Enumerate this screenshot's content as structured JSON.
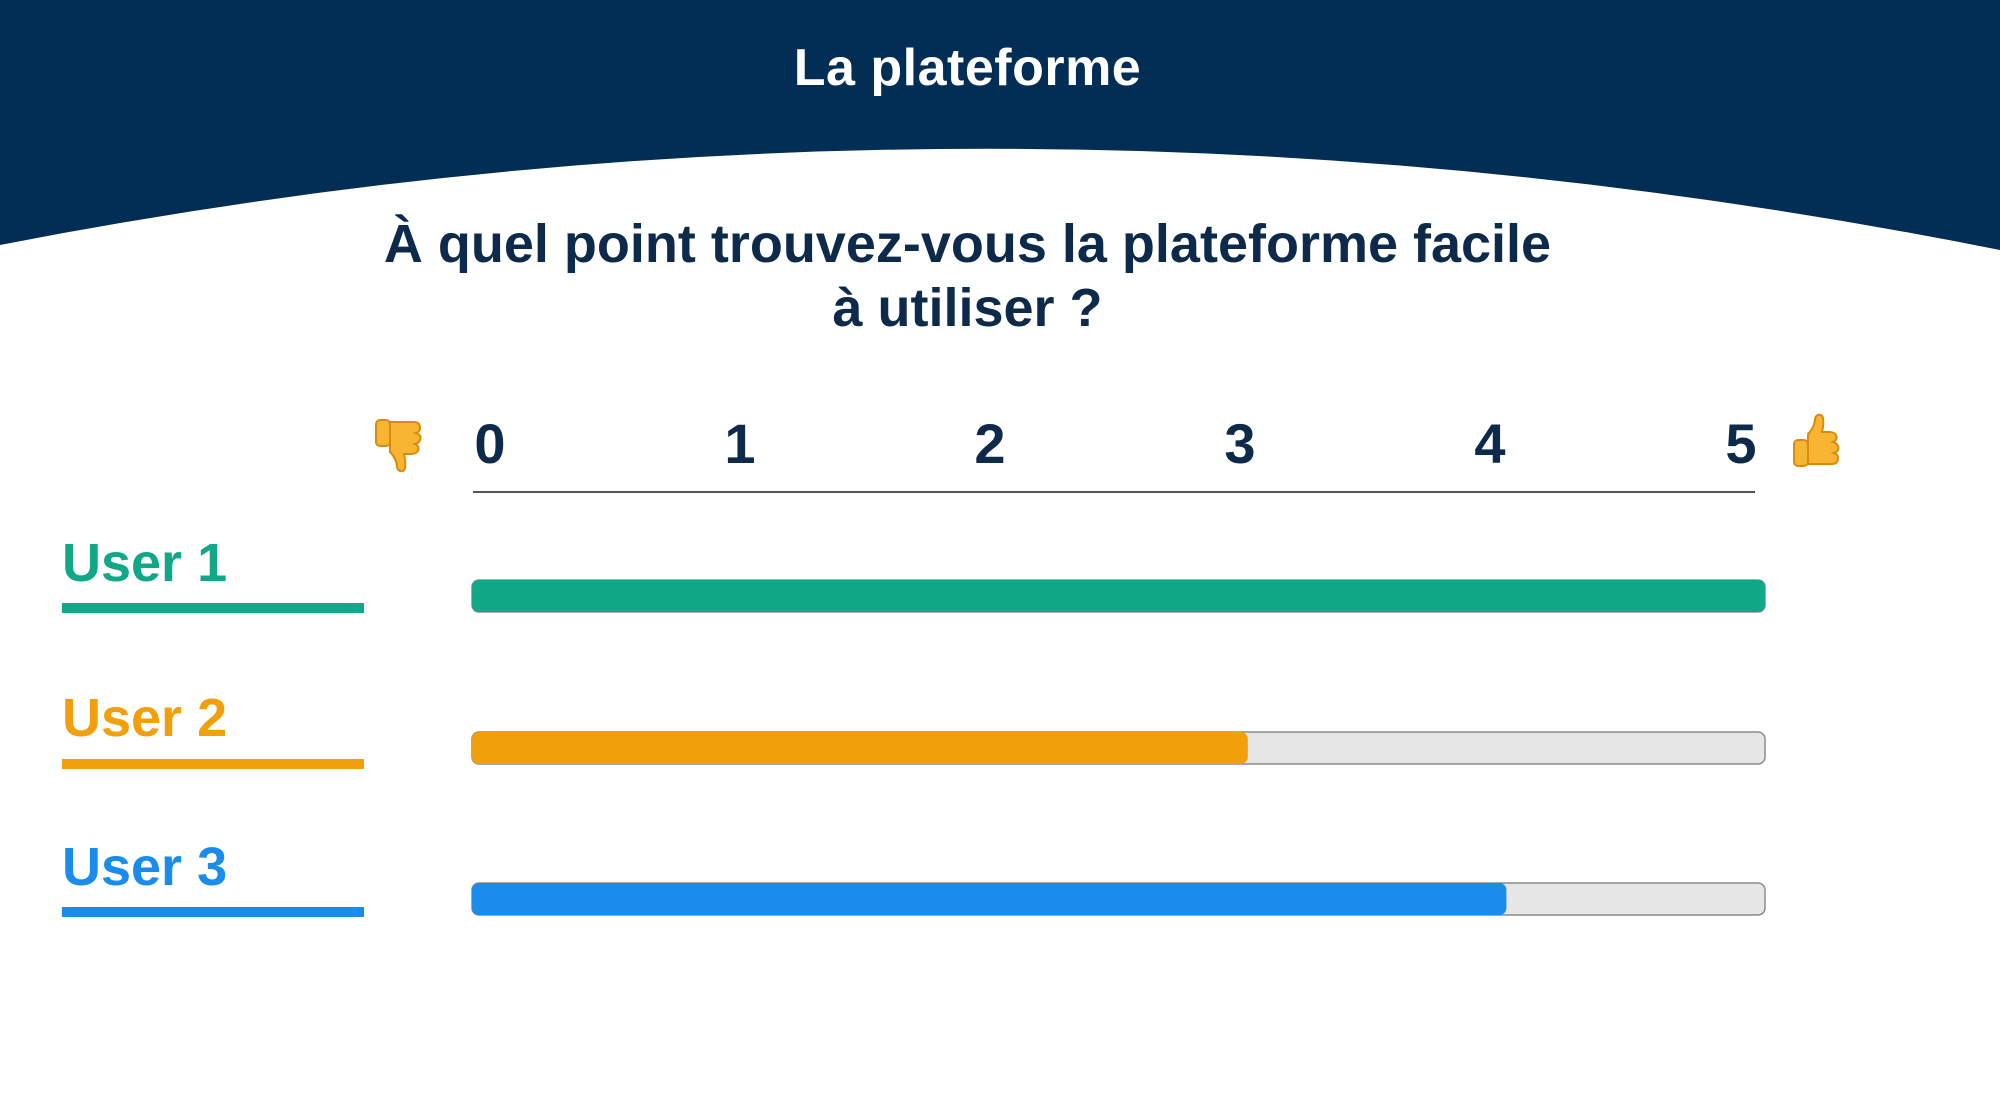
{
  "header": {
    "title": "La plateforme",
    "background_color": "#022d55"
  },
  "question": {
    "line1": "À quel point trouvez-vous la plateforme facile",
    "line2": "à utiliser ?"
  },
  "scale": {
    "low_icon": "thumbs-down-icon",
    "high_icon": "thumbs-up-icon"
  },
  "chart_data": {
    "type": "bar",
    "orientation": "horizontal",
    "title": "",
    "xlabel": "",
    "ylabel": "",
    "xlim": [
      0,
      5
    ],
    "ticks": [
      "0",
      "1",
      "2",
      "3",
      "4",
      "5"
    ],
    "categories": [
      "User 1",
      "User 2",
      "User 3"
    ],
    "values": [
      5,
      3,
      4
    ],
    "colors": [
      "#10a887",
      "#f19f0a",
      "#1a8cec"
    ],
    "track_color": "#e6e6e6",
    "grid": false,
    "legend": "none"
  }
}
